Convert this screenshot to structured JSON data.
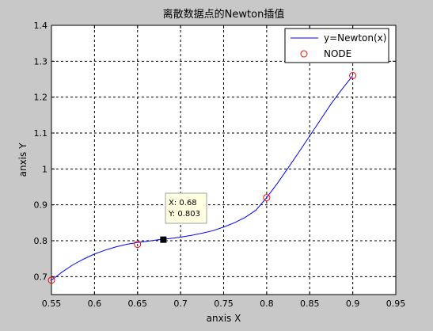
{
  "chart_data": {
    "type": "line",
    "title": "离散数据点的Newton插值",
    "xlabel": "anxis X",
    "ylabel": "anxis Y",
    "xlim": [
      0.55,
      0.95
    ],
    "ylim": [
      0.65,
      1.4
    ],
    "xticks": [
      "0.55",
      "0.6",
      "0.65",
      "0.7",
      "0.75",
      "0.8",
      "0.85",
      "0.9",
      "0.95"
    ],
    "yticks": [
      "0.7",
      "0.8",
      "0.9",
      "1",
      "1.1",
      "1.2",
      "1.3",
      "1.4"
    ],
    "xtick_values": [
      0.55,
      0.6,
      0.65,
      0.7,
      0.75,
      0.8,
      0.85,
      0.9,
      0.95
    ],
    "ytick_values": [
      0.7,
      0.8,
      0.9,
      1.0,
      1.1,
      1.2,
      1.3,
      1.4
    ],
    "grid": true,
    "legend_position": "top-right",
    "series": [
      {
        "name": "y=Newton(x)",
        "style": "line",
        "color": "#0000ff",
        "x": [
          0.55,
          0.5625,
          0.575,
          0.5875,
          0.6,
          0.6125,
          0.625,
          0.6375,
          0.65,
          0.6625,
          0.675,
          0.6875,
          0.7,
          0.7125,
          0.725,
          0.7375,
          0.75,
          0.7625,
          0.775,
          0.7875,
          0.8,
          0.8125,
          0.825,
          0.8375,
          0.85,
          0.8625,
          0.875,
          0.8875,
          0.9
        ],
        "y": [
          0.69,
          0.713,
          0.733,
          0.749,
          0.763,
          0.774,
          0.783,
          0.79,
          0.795,
          0.799,
          0.803,
          0.806,
          0.81,
          0.815,
          0.821,
          0.828,
          0.838,
          0.85,
          0.865,
          0.885,
          0.92,
          0.96,
          1.003,
          1.047,
          1.092,
          1.137,
          1.182,
          1.222,
          1.26
        ]
      },
      {
        "name": "NODE",
        "style": "marker",
        "color": "#ff0000",
        "x": [
          0.55,
          0.65,
          0.8,
          0.9
        ],
        "y": [
          0.69,
          0.79,
          0.92,
          1.26
        ]
      }
    ],
    "datatip": {
      "x": 0.68,
      "y": 0.803,
      "x_text": "X: 0.68",
      "y_text": "Y: 0.803"
    }
  },
  "colors": {
    "figure_bg": "#c8c8c8",
    "axes_bg": "#ffffff",
    "curve": "#0000ff",
    "node": "#ff0000",
    "tip_bg": "#ffffe1"
  }
}
